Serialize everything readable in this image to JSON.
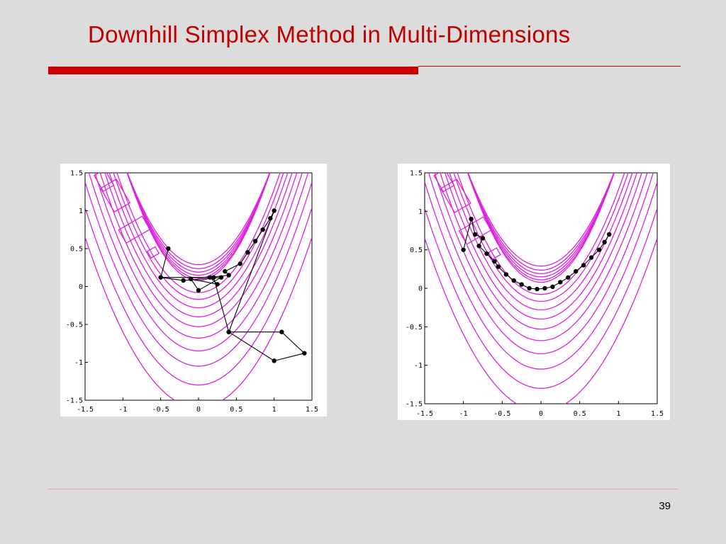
{
  "slide": {
    "title": "Downhill Simplex Method in Multi-Dimensions",
    "page_number": "39",
    "accent_color": "#cc0000",
    "contour_color": "#dd22dd"
  },
  "chart_data": [
    {
      "type": "contour",
      "xlim": [
        -1.5,
        1.5
      ],
      "ylim": [
        -1.5,
        1.5
      ],
      "x_ticks": [
        "-1.5",
        "-1",
        "-0.5",
        "0",
        "0.5",
        "1",
        "1.5"
      ],
      "y_ticks": [
        "1.5",
        "1",
        "0.5",
        "0",
        "-0.5",
        "-1",
        "-1.5"
      ],
      "simplex_path": {
        "x": [
          -0.4,
          -0.5,
          -0.2,
          0.3,
          0.0,
          -0.1,
          0.25,
          0.15,
          0.4,
          0.35,
          0.55,
          0.65,
          0.75,
          0.85,
          0.95,
          1.0,
          0.4,
          1.1,
          1.4,
          1.0,
          0.4,
          0.2,
          -0.5
        ],
        "y": [
          0.5,
          0.12,
          0.08,
          0.12,
          -0.05,
          0.1,
          0.03,
          0.12,
          0.15,
          0.2,
          0.3,
          0.45,
          0.6,
          0.75,
          0.9,
          1.0,
          -0.6,
          -0.6,
          -0.88,
          -0.98,
          -0.6,
          0.12,
          0.12
        ]
      }
    },
    {
      "type": "contour",
      "xlim": [
        -1.5,
        1.5
      ],
      "ylim": [
        -1.5,
        1.5
      ],
      "x_ticks": [
        "-1.5",
        "-1",
        "-0.5",
        "0",
        "0.5",
        "1",
        "1.5"
      ],
      "y_ticks": [
        "1.5",
        "1",
        "0.5",
        "0",
        "-0.5",
        "-1",
        "-1.5"
      ],
      "simplex_path": {
        "x": [
          -1.0,
          -0.9,
          -0.85,
          -0.75,
          -0.8,
          -0.7,
          -0.6,
          -0.55,
          -0.45,
          -0.35,
          -0.25,
          -0.15,
          -0.05,
          0.05,
          0.15,
          0.25,
          0.35,
          0.45,
          0.55,
          0.65,
          0.75,
          0.82,
          0.88
        ],
        "y": [
          0.5,
          0.9,
          0.7,
          0.65,
          0.55,
          0.45,
          0.35,
          0.28,
          0.18,
          0.1,
          0.05,
          0.0,
          -0.01,
          0.0,
          0.02,
          0.08,
          0.14,
          0.22,
          0.3,
          0.4,
          0.5,
          0.6,
          0.7
        ]
      }
    }
  ]
}
